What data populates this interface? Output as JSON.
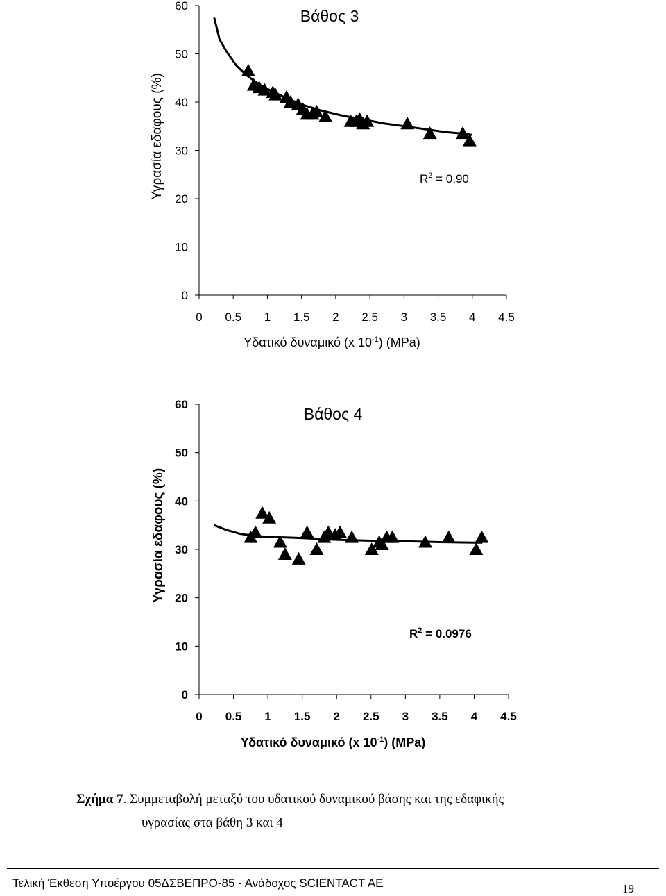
{
  "chart_data": [
    {
      "type": "scatter",
      "title": "Βάθος 3",
      "xlabel_main": "Υδατικό δυναμικό (x 10",
      "xlabel_sup": "-1",
      "xlabel_tail": ") (MPa)",
      "ylabel": "Υγρασία εδαφους (%)",
      "xlim": [
        0,
        4.5
      ],
      "ylim": [
        0,
        60
      ],
      "x_ticks": [
        "0",
        "0.5",
        "1",
        "1.5",
        "2",
        "2.5",
        "3",
        "3.5",
        "4",
        "4.5"
      ],
      "y_ticks": [
        "0",
        "10",
        "20",
        "30",
        "40",
        "50",
        "60"
      ],
      "r2_label": "R",
      "r2_sup": "2",
      "r2_value": " = 0,90",
      "marker": "triangle",
      "grid": false,
      "points": [
        [
          0.72,
          46.5
        ],
        [
          0.8,
          43.5
        ],
        [
          0.88,
          43.0
        ],
        [
          0.96,
          42.5
        ],
        [
          1.08,
          42.0
        ],
        [
          1.12,
          41.5
        ],
        [
          1.28,
          41.0
        ],
        [
          1.34,
          40.0
        ],
        [
          1.45,
          39.5
        ],
        [
          1.52,
          38.5
        ],
        [
          1.58,
          37.5
        ],
        [
          1.66,
          37.5
        ],
        [
          1.72,
          38.0
        ],
        [
          1.85,
          37.0
        ],
        [
          2.22,
          36.0
        ],
        [
          2.3,
          36.0
        ],
        [
          2.35,
          36.5
        ],
        [
          2.4,
          35.5
        ],
        [
          2.46,
          36.0
        ],
        [
          3.05,
          35.5
        ],
        [
          3.38,
          33.5
        ],
        [
          3.86,
          33.5
        ],
        [
          3.96,
          32.0
        ]
      ],
      "trend": [
        [
          0.22,
          57.5
        ],
        [
          0.3,
          53.0
        ],
        [
          0.4,
          50.5
        ],
        [
          0.55,
          47.5
        ],
        [
          0.7,
          45.5
        ],
        [
          0.9,
          43.5
        ],
        [
          1.1,
          42.0
        ],
        [
          1.3,
          40.7
        ],
        [
          1.5,
          39.5
        ],
        [
          1.8,
          38.2
        ],
        [
          2.1,
          37.2
        ],
        [
          2.4,
          36.4
        ],
        [
          2.7,
          35.6
        ],
        [
          3.0,
          35.0
        ],
        [
          3.3,
          34.4
        ],
        [
          3.6,
          33.8
        ],
        [
          3.9,
          33.4
        ],
        [
          4.0,
          33.2
        ]
      ]
    },
    {
      "type": "scatter",
      "title": "Βάθος 4",
      "xlabel_main": "Υδατικό δυναμικό (x 10",
      "xlabel_sup": "-1",
      "xlabel_tail": ") (MPa)",
      "ylabel": "Υγρασία εδαφους (%)",
      "xlim": [
        0,
        4.5
      ],
      "ylim": [
        0,
        60
      ],
      "x_ticks": [
        "0",
        "0.5",
        "1",
        "1.5",
        "2",
        "2.5",
        "3",
        "3.5",
        "4",
        "4.5"
      ],
      "y_ticks": [
        "0",
        "10",
        "20",
        "30",
        "40",
        "50",
        "60"
      ],
      "r2_label": "R",
      "r2_sup": "2",
      "r2_value": " = 0.0976",
      "marker": "triangle",
      "grid": false,
      "points": [
        [
          0.75,
          32.5
        ],
        [
          0.82,
          33.5
        ],
        [
          0.92,
          37.5
        ],
        [
          1.02,
          36.5
        ],
        [
          1.18,
          31.5
        ],
        [
          1.25,
          29.0
        ],
        [
          1.45,
          28.0
        ],
        [
          1.57,
          33.5
        ],
        [
          1.71,
          30.0
        ],
        [
          1.82,
          32.5
        ],
        [
          1.88,
          33.5
        ],
        [
          1.98,
          33.0
        ],
        [
          2.05,
          33.5
        ],
        [
          2.22,
          32.5
        ],
        [
          2.51,
          30.0
        ],
        [
          2.62,
          31.5
        ],
        [
          2.66,
          31.0
        ],
        [
          2.73,
          32.5
        ],
        [
          2.81,
          32.5
        ],
        [
          3.29,
          31.5
        ],
        [
          3.63,
          32.5
        ],
        [
          4.03,
          30.0
        ],
        [
          4.11,
          32.5
        ]
      ],
      "trend": [
        [
          0.22,
          35.0
        ],
        [
          0.4,
          34.0
        ],
        [
          0.6,
          33.2
        ],
        [
          0.8,
          32.8
        ],
        [
          1.0,
          32.6
        ],
        [
          1.4,
          32.4
        ],
        [
          2.0,
          32.0
        ],
        [
          2.5,
          31.8
        ],
        [
          3.0,
          31.7
        ],
        [
          3.5,
          31.5
        ],
        [
          4.0,
          31.4
        ],
        [
          4.12,
          31.4
        ]
      ]
    }
  ],
  "caption": {
    "lead": "Σχήμα 7",
    "text": ". Συμμεταβολή μεταξύ του υδατικού δυναμικού βάσης και της εδαφικής",
    "line2": "υγρασίας στα βάθη 3 και 4"
  },
  "footer": {
    "text": "Τελική Έκθεση Υποέργου 05ΔΣΒΕΠΡΟ-85 - Ανάδοχος SCIENTACT AE",
    "page_number": "19"
  }
}
